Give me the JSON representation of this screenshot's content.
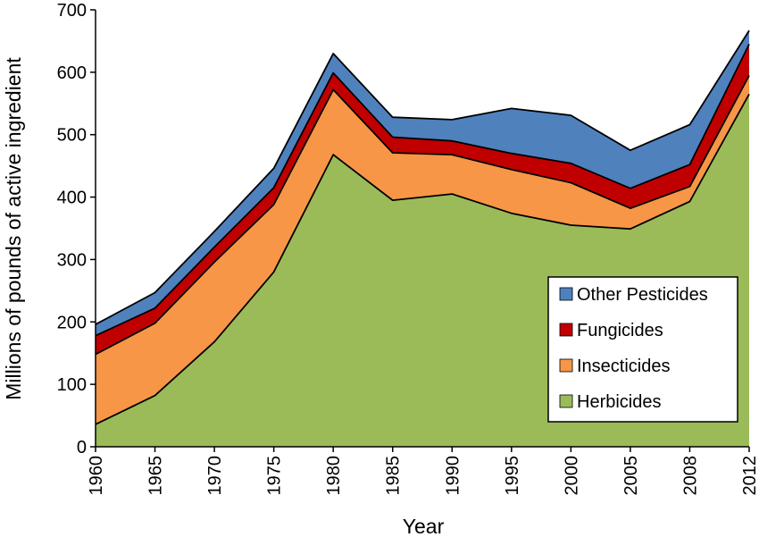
{
  "chart_data": {
    "type": "area",
    "stacked": true,
    "x": [
      "1960",
      "1965",
      "1970",
      "1975",
      "1980",
      "1985",
      "1990",
      "1995",
      "2000",
      "2005",
      "2008",
      "2012"
    ],
    "xlabel": "Year",
    "ylabel": "Millions of pounds of active ingredient",
    "ylim": [
      0,
      700
    ],
    "yticks": [
      "0",
      "100",
      "200",
      "300",
      "400",
      "500",
      "600",
      "700"
    ],
    "legend_position": "bottom-right",
    "grid": false,
    "series": [
      {
        "name": "Herbicides",
        "color": "#9bbb59",
        "values": [
          36,
          82,
          168,
          280,
          468,
          395,
          405,
          374,
          355,
          349,
          393,
          565
        ]
      },
      {
        "name": "Insecticides",
        "color": "#f79646",
        "values": [
          112,
          116,
          128,
          108,
          104,
          76,
          63,
          70,
          68,
          33,
          24,
          30
        ]
      },
      {
        "name": "Fungicides",
        "color": "#c00000",
        "values": [
          30,
          24,
          24,
          27,
          27,
          25,
          22,
          26,
          31,
          32,
          35,
          50
        ]
      },
      {
        "name": "Other Pesticides",
        "color": "#4f81bd",
        "values": [
          18,
          25,
          25,
          31,
          31,
          32,
          34,
          72,
          77,
          61,
          64,
          22
        ]
      }
    ]
  }
}
